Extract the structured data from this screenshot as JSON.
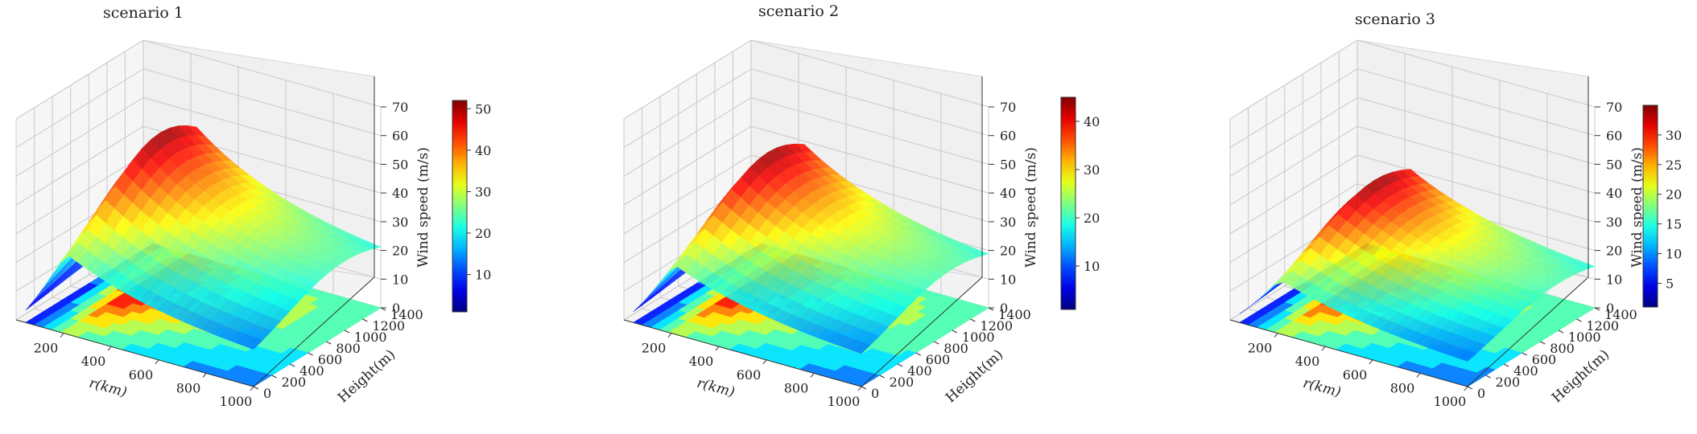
{
  "figure": {
    "colormap": "jet",
    "pane_color": "#f0f0f0",
    "grid_color": "#c8c8c8"
  },
  "chart_data": [
    {
      "type": "surface3d",
      "title": "scenario 1",
      "xlabel": "r(km)",
      "ylabel": "Height(m)",
      "zlabel": "Wind speed (m/s)",
      "x_ticks": [
        "200",
        "400",
        "600",
        "800",
        "1000"
      ],
      "y_ticks": [
        "0",
        "200",
        "400",
        "600",
        "800",
        "1000",
        "1200",
        "1400"
      ],
      "z_ticks": [
        "0",
        "10",
        "20",
        "30",
        "40",
        "50",
        "60",
        "70"
      ],
      "xlim": [
        0,
        1000
      ],
      "ylim": [
        0,
        1400
      ],
      "zlim": [
        0,
        70
      ],
      "colorbar_ticks": [
        "10",
        "20",
        "30",
        "40",
        "50"
      ],
      "colorbar_range": [
        1,
        52
      ],
      "surface": {
        "peak_r_km": 210,
        "peak_height_m": 1000,
        "max_speed": 52,
        "min_speed": 1,
        "far_speed": 19
      }
    },
    {
      "type": "surface3d",
      "title": "scenario 2",
      "xlabel": "r(km)",
      "ylabel": "Height(m)",
      "zlabel": "Wind speed (m/s)",
      "x_ticks": [
        "200",
        "400",
        "600",
        "800",
        "1000"
      ],
      "y_ticks": [
        "0",
        "200",
        "400",
        "600",
        "800",
        "1000",
        "1200",
        "1400"
      ],
      "z_ticks": [
        "0",
        "10",
        "20",
        "30",
        "40",
        "50",
        "60",
        "70"
      ],
      "xlim": [
        0,
        1000
      ],
      "ylim": [
        0,
        1400
      ],
      "zlim": [
        0,
        70
      ],
      "colorbar_ticks": [
        "10",
        "20",
        "30",
        "40"
      ],
      "colorbar_range": [
        1,
        45
      ],
      "surface": {
        "peak_r_km": 210,
        "peak_height_m": 1000,
        "max_speed": 45,
        "min_speed": 1,
        "far_speed": 17
      }
    },
    {
      "type": "surface3d",
      "title": "scenario 3",
      "xlabel": "r(km)",
      "ylabel": "Height(m)",
      "zlabel": "Wind speed (m/s)",
      "x_ticks": [
        "200",
        "400",
        "600",
        "800",
        "1000"
      ],
      "y_ticks": [
        "0",
        "200",
        "400",
        "600",
        "800",
        "1000",
        "1200",
        "1400"
      ],
      "z_ticks": [
        "0",
        "10",
        "20",
        "30",
        "40",
        "50",
        "60",
        "70"
      ],
      "xlim": [
        0,
        1000
      ],
      "ylim": [
        0,
        1400
      ],
      "zlim": [
        0,
        70
      ],
      "colorbar_ticks": [
        "5",
        "10",
        "15",
        "20",
        "25",
        "30"
      ],
      "colorbar_range": [
        1,
        35
      ],
      "surface": {
        "peak_r_km": 210,
        "peak_height_m": 1000,
        "max_speed": 35,
        "min_speed": 1,
        "far_speed": 13
      }
    }
  ]
}
